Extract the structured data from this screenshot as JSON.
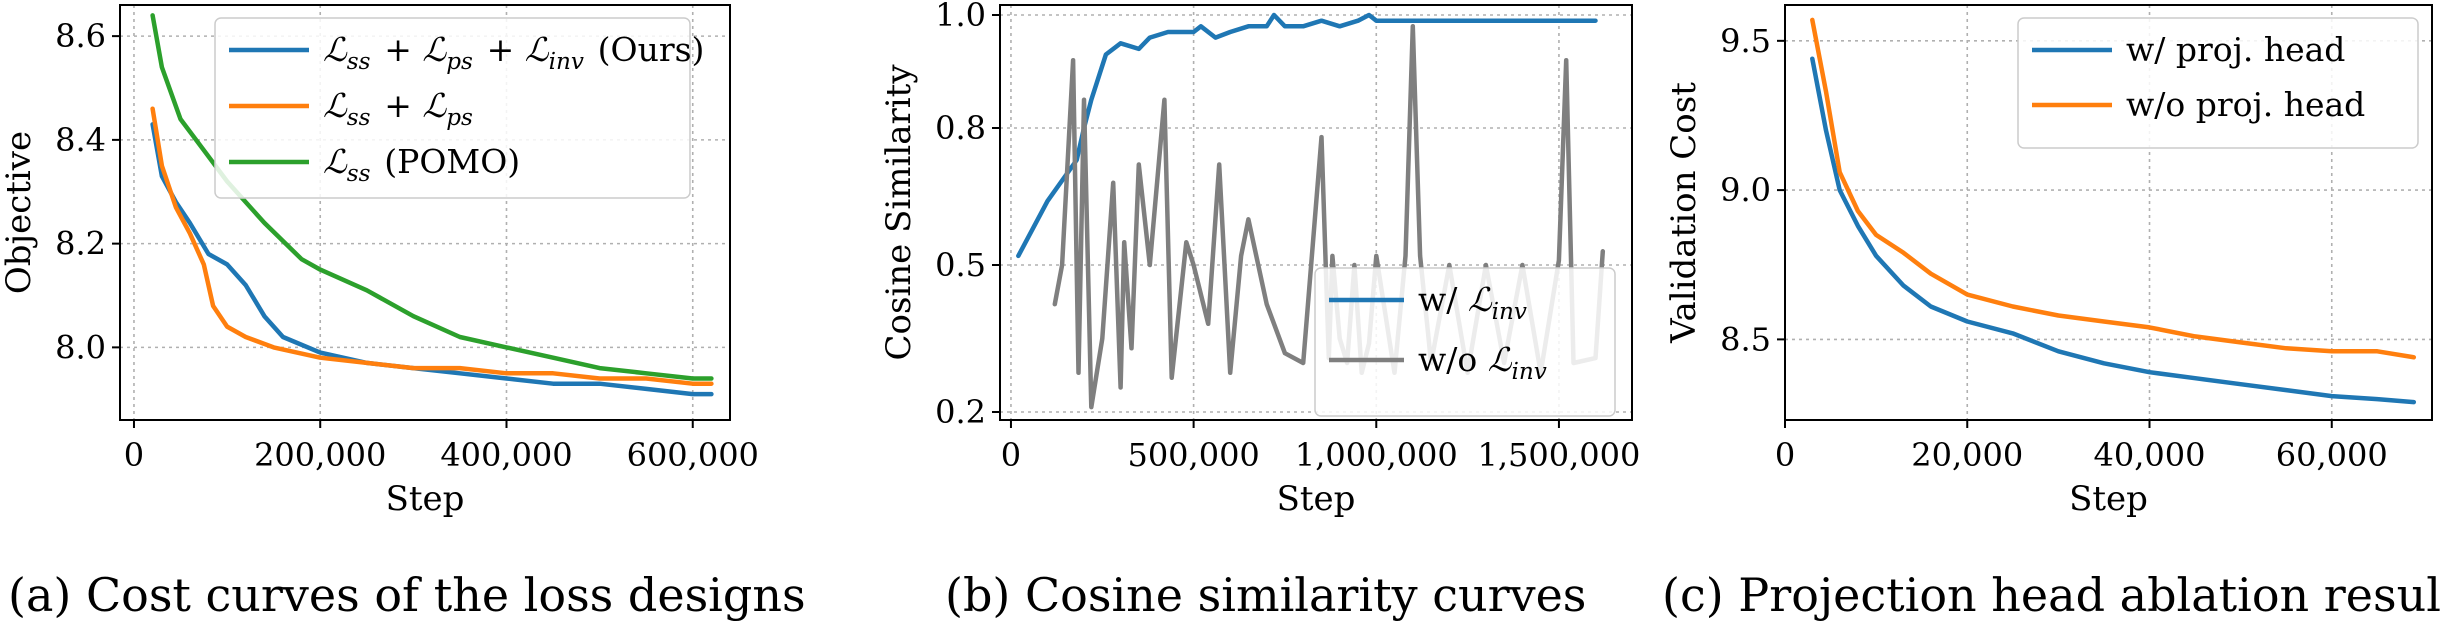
{
  "panels": [
    {
      "caption": "(a) Cost curves of the loss designs",
      "chart_data": {
        "type": "line",
        "title": "",
        "xlabel": "Step",
        "ylabel": "Objective",
        "xlim": [
          -15000,
          640000
        ],
        "ylim": [
          7.86,
          8.66
        ],
        "xticks": [
          0,
          200000,
          400000,
          600000
        ],
        "xtick_labels": [
          "0",
          "200,000",
          "400,000",
          "600,000"
        ],
        "yticks": [
          8.0,
          8.2,
          8.4,
          8.6
        ],
        "ytick_labels": [
          "8.0",
          "8.2",
          "8.4",
          "8.6"
        ],
        "grid": true,
        "legend": "top-right",
        "series": [
          {
            "name": "Lss + Lps + Linv (Ours)",
            "legend_parts": [
              "ss",
              "ps",
              "inv",
              "(Ours)"
            ],
            "color": "#1f77b4",
            "x": [
              20000,
              30000,
              45000,
              60000,
              80000,
              100000,
              120000,
              140000,
              160000,
              200000,
              250000,
              300000,
              350000,
              400000,
              450000,
              500000,
              550000,
              600000,
              620000
            ],
            "y": [
              8.43,
              8.33,
              8.28,
              8.24,
              8.18,
              8.16,
              8.12,
              8.06,
              8.02,
              7.99,
              7.97,
              7.96,
              7.95,
              7.94,
              7.93,
              7.93,
              7.92,
              7.91,
              7.91
            ]
          },
          {
            "name": "Lss + Lps",
            "legend_parts": [
              "ss",
              "ps"
            ],
            "color": "#ff7f0e",
            "x": [
              20000,
              30000,
              45000,
              60000,
              75000,
              85000,
              100000,
              120000,
              150000,
              200000,
              250000,
              300000,
              350000,
              400000,
              450000,
              500000,
              550000,
              600000,
              620000
            ],
            "y": [
              8.46,
              8.35,
              8.27,
              8.22,
              8.16,
              8.08,
              8.04,
              8.02,
              8.0,
              7.98,
              7.97,
              7.96,
              7.96,
              7.95,
              7.95,
              7.94,
              7.94,
              7.93,
              7.93
            ]
          },
          {
            "name": "Lss (POMO)",
            "legend_parts": [
              "ss",
              "(POMO)"
            ],
            "color": "#2ca02c",
            "x": [
              20000,
              30000,
              50000,
              75000,
              100000,
              140000,
              180000,
              200000,
              250000,
              300000,
              350000,
              400000,
              450000,
              500000,
              550000,
              600000,
              620000
            ],
            "y": [
              8.64,
              8.54,
              8.44,
              8.38,
              8.32,
              8.24,
              8.17,
              8.15,
              8.11,
              8.06,
              8.02,
              8.0,
              7.98,
              7.96,
              7.95,
              7.94,
              7.94
            ]
          }
        ]
      }
    },
    {
      "caption": "(b) Cosine similarity curves",
      "chart_data": {
        "type": "line",
        "title": "",
        "xlabel": "Step",
        "ylabel": "Cosine Similarity",
        "y_scale": "nonlinear",
        "xlim": [
          -30000,
          1700000
        ],
        "ylim": [
          0.16,
          1.02
        ],
        "xticks": [
          0,
          500000,
          1000000,
          1500000
        ],
        "xtick_labels": [
          "0",
          "500,000",
          "1,000,000",
          "1,500,000"
        ],
        "yticks": [
          0.2,
          0.5,
          0.8,
          1.0
        ],
        "ytick_labels": [
          "0.2",
          "0.5",
          "0.8",
          "1.0"
        ],
        "grid": true,
        "legend": "lower-right",
        "series": [
          {
            "name": "w/ Linv",
            "legend_parts": [
              "w/",
              "inv"
            ],
            "color": "#1f77b4",
            "x": [
              20000,
              100000,
              180000,
              200000,
              220000,
              260000,
              300000,
              350000,
              380000,
              430000,
              470000,
              500000,
              520000,
              560000,
              600000,
              650000,
              700000,
              720000,
              750000,
              800000,
              850000,
              900000,
              950000,
              980000,
              1000000,
              1050000,
              1100000,
              1200000,
              1300000,
              1400000,
              1500000,
              1600000
            ],
            "y": [
              0.52,
              0.64,
              0.73,
              0.8,
              0.85,
              0.93,
              0.95,
              0.94,
              0.96,
              0.97,
              0.97,
              0.97,
              0.98,
              0.96,
              0.97,
              0.98,
              0.98,
              1.0,
              0.98,
              0.98,
              0.99,
              0.98,
              0.99,
              1.0,
              0.99,
              0.99,
              0.99,
              0.99,
              0.99,
              0.99,
              0.99,
              0.99
            ]
          },
          {
            "name": "w/o Linv",
            "legend_parts": [
              "w/o",
              "inv"
            ],
            "color": "#7f7f7f",
            "x": [
              120000,
              140000,
              170000,
              185000,
              200000,
              220000,
              250000,
              280000,
              300000,
              310000,
              330000,
              350000,
              380000,
              420000,
              440000,
              480000,
              500000,
              540000,
              570000,
              600000,
              630000,
              650000,
              700000,
              750000,
              800000,
              850000,
              870000,
              880000,
              900000,
              920000,
              940000,
              960000,
              980000,
              1000000,
              1050000,
              1080000,
              1100000,
              1120000,
              1150000,
              1200000,
              1250000,
              1300000,
              1350000,
              1400000,
              1450000,
              1500000,
              1520000,
              1540000,
              1600000,
              1620000
            ],
            "y": [
              0.42,
              0.5,
              0.92,
              0.28,
              0.85,
              0.21,
              0.35,
              0.68,
              0.25,
              0.55,
              0.33,
              0.72,
              0.5,
              0.85,
              0.27,
              0.55,
              0.5,
              0.38,
              0.72,
              0.28,
              0.52,
              0.6,
              0.42,
              0.32,
              0.3,
              0.78,
              0.31,
              0.52,
              0.35,
              0.3,
              0.5,
              0.28,
              0.34,
              0.52,
              0.28,
              0.52,
              0.98,
              0.52,
              0.3,
              0.5,
              0.28,
              0.5,
              0.3,
              0.5,
              0.28,
              0.51,
              0.92,
              0.3,
              0.31,
              0.53
            ]
          }
        ]
      }
    },
    {
      "caption": "(c) Projection head ablation results",
      "chart_data": {
        "type": "line",
        "title": "",
        "xlabel": "Step",
        "ylabel": "Validation Cost",
        "xlim": [
          0,
          71000
        ],
        "ylim": [
          8.23,
          9.62
        ],
        "xticks": [
          0,
          20000,
          40000,
          60000
        ],
        "xtick_labels": [
          "0",
          "20,000",
          "40,000",
          "60,000"
        ],
        "yticks": [
          8.5,
          9.0,
          9.5
        ],
        "ytick_labels": [
          "8.5",
          "9.0",
          "9.5"
        ],
        "grid": true,
        "legend": "top-right",
        "series": [
          {
            "name": "w/ proj. head",
            "color": "#1f77b4",
            "x": [
              3000,
              4500,
              6000,
              8000,
              10000,
              13000,
              16000,
              20000,
              25000,
              30000,
              35000,
              40000,
              45000,
              50000,
              55000,
              60000,
              65000,
              69000
            ],
            "y": [
              9.44,
              9.2,
              9.0,
              8.88,
              8.78,
              8.68,
              8.61,
              8.56,
              8.52,
              8.46,
              8.42,
              8.39,
              8.37,
              8.35,
              8.33,
              8.31,
              8.3,
              8.29
            ]
          },
          {
            "name": "w/o proj. head",
            "color": "#ff7f0e",
            "x": [
              3000,
              4500,
              6000,
              8000,
              10000,
              13000,
              16000,
              20000,
              25000,
              30000,
              35000,
              40000,
              45000,
              50000,
              55000,
              60000,
              65000,
              69000
            ],
            "y": [
              9.57,
              9.33,
              9.06,
              8.93,
              8.85,
              8.79,
              8.72,
              8.65,
              8.61,
              8.58,
              8.56,
              8.54,
              8.51,
              8.49,
              8.47,
              8.46,
              8.46,
              8.44
            ]
          }
        ]
      }
    }
  ]
}
